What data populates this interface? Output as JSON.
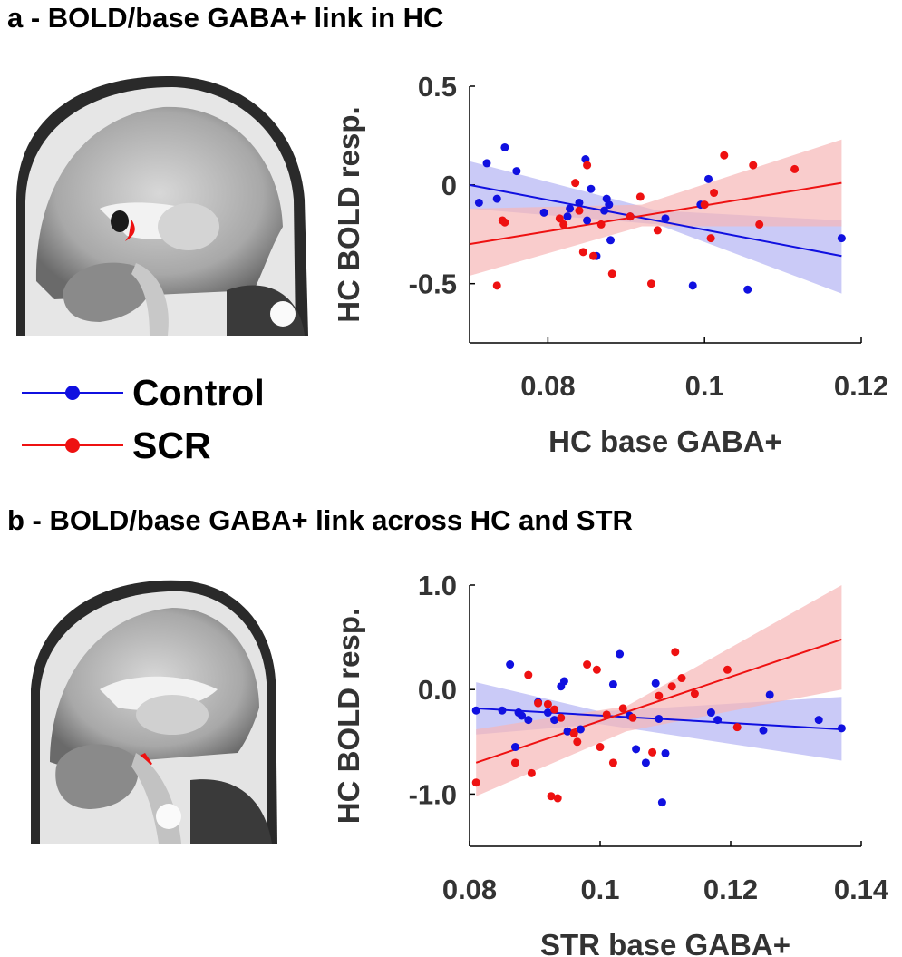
{
  "panel_a": {
    "title": "a - BOLD/base GABA+ link in HC"
  },
  "panel_b": {
    "title": "b - BOLD/base GABA+ link across HC and STR"
  },
  "legend": {
    "items": [
      {
        "label": "Control",
        "color": "#1010e0"
      },
      {
        "label": "SCR",
        "color": "#ee1111"
      }
    ]
  },
  "colors": {
    "control": "#1010e0",
    "scr": "#ee1111",
    "control_band": "#b4b4f4",
    "scr_band": "#f7b7b7"
  },
  "chart_data": [
    {
      "type": "scatter",
      "title": "",
      "xlabel": "HC base GABA+",
      "ylabel": "HC BOLD resp.",
      "xlim": [
        0.07,
        0.12
      ],
      "ylim": [
        -0.8,
        0.5
      ],
      "xticks": [
        0.08,
        0.1,
        0.12
      ],
      "xtick_labels": [
        "0.08",
        "0.1",
        "0.12"
      ],
      "yticks": [
        -0.5,
        0,
        0.5
      ],
      "ytick_labels": [
        "-0.5",
        "0",
        "0.5"
      ],
      "series": [
        {
          "name": "Control",
          "points": [
            [
              0.0712,
              -0.09
            ],
            [
              0.0722,
              0.11
            ],
            [
              0.0735,
              -0.07
            ],
            [
              0.0745,
              0.19
            ],
            [
              0.076,
              0.07
            ],
            [
              0.0795,
              -0.14
            ],
            [
              0.0825,
              -0.16
            ],
            [
              0.0828,
              -0.12
            ],
            [
              0.084,
              -0.09
            ],
            [
              0.0848,
              0.13
            ],
            [
              0.085,
              -0.18
            ],
            [
              0.0855,
              -0.02
            ],
            [
              0.0862,
              -0.36
            ],
            [
              0.0872,
              -0.13
            ],
            [
              0.0875,
              -0.07
            ],
            [
              0.0878,
              -0.1
            ],
            [
              0.088,
              -0.28
            ],
            [
              0.0905,
              -0.16
            ],
            [
              0.095,
              -0.17
            ],
            [
              0.0985,
              -0.51
            ],
            [
              0.0995,
              -0.1
            ],
            [
              0.1005,
              0.03
            ],
            [
              0.1055,
              -0.53
            ],
            [
              0.1175,
              -0.27
            ]
          ],
          "fit": {
            "x": [
              0.07,
              0.1175
            ],
            "y": [
              0.0,
              -0.36
            ]
          },
          "ci_upper": [
            [
              0.07,
              0.12
            ],
            [
              0.094,
              -0.13
            ],
            [
              0.1175,
              -0.18
            ]
          ],
          "ci_lower": [
            [
              0.07,
              -0.12
            ],
            [
              0.094,
              -0.2
            ],
            [
              0.1175,
              -0.55
            ]
          ]
        },
        {
          "name": "SCR",
          "points": [
            [
              0.0735,
              -0.51
            ],
            [
              0.0742,
              -0.18
            ],
            [
              0.0745,
              -0.19
            ],
            [
              0.0815,
              -0.17
            ],
            [
              0.082,
              -0.2
            ],
            [
              0.0835,
              0.01
            ],
            [
              0.084,
              -0.13
            ],
            [
              0.0845,
              -0.34
            ],
            [
              0.085,
              0.1
            ],
            [
              0.0858,
              -0.36
            ],
            [
              0.0868,
              -0.2
            ],
            [
              0.0882,
              -0.45
            ],
            [
              0.0905,
              -0.16
            ],
            [
              0.0918,
              -0.06
            ],
            [
              0.0932,
              -0.5
            ],
            [
              0.094,
              -0.23
            ],
            [
              0.1,
              -0.1
            ],
            [
              0.1008,
              -0.27
            ],
            [
              0.1012,
              -0.04
            ],
            [
              0.1025,
              0.15
            ],
            [
              0.1062,
              0.1
            ],
            [
              0.107,
              -0.2
            ],
            [
              0.1115,
              0.08
            ]
          ],
          "fit": {
            "x": [
              0.07,
              0.1175
            ],
            "y": [
              -0.3,
              0.01
            ]
          },
          "ci_upper": [
            [
              0.07,
              -0.12
            ],
            [
              0.092,
              -0.1
            ],
            [
              0.1175,
              0.23
            ]
          ],
          "ci_lower": [
            [
              0.07,
              -0.46
            ],
            [
              0.092,
              -0.21
            ],
            [
              0.1175,
              -0.21
            ]
          ]
        }
      ]
    },
    {
      "type": "scatter",
      "title": "",
      "xlabel": "STR base GABA+",
      "ylabel": "HC BOLD resp.",
      "xlim": [
        0.08,
        0.14
      ],
      "ylim": [
        -1.5,
        1.0
      ],
      "xticks": [
        0.08,
        0.1,
        0.12,
        0.14
      ],
      "xtick_labels": [
        "0.08",
        "0.1",
        "0.12",
        "0.14"
      ],
      "yticks": [
        -1.0,
        0,
        1.0
      ],
      "ytick_labels": [
        "-1.0",
        "0.0",
        "1.0"
      ],
      "series": [
        {
          "name": "Control",
          "points": [
            [
              0.081,
              -0.2
            ],
            [
              0.085,
              -0.2
            ],
            [
              0.0862,
              0.24
            ],
            [
              0.087,
              -0.55
            ],
            [
              0.0875,
              -0.22
            ],
            [
              0.088,
              -0.25
            ],
            [
              0.089,
              -0.29
            ],
            [
              0.0905,
              -0.12
            ],
            [
              0.092,
              -0.22
            ],
            [
              0.093,
              -0.29
            ],
            [
              0.094,
              0.03
            ],
            [
              0.0945,
              0.08
            ],
            [
              0.095,
              -0.4
            ],
            [
              0.097,
              -0.38
            ],
            [
              0.102,
              0.05
            ],
            [
              0.103,
              0.34
            ],
            [
              0.1045,
              -0.25
            ],
            [
              0.1055,
              -0.57
            ],
            [
              0.107,
              -0.7
            ],
            [
              0.1085,
              0.06
            ],
            [
              0.109,
              -0.28
            ],
            [
              0.1095,
              -1.08
            ],
            [
              0.11,
              -0.61
            ],
            [
              0.117,
              -0.22
            ],
            [
              0.118,
              -0.29
            ],
            [
              0.125,
              -0.39
            ],
            [
              0.126,
              -0.05
            ],
            [
              0.1335,
              -0.29
            ],
            [
              0.137,
              -0.37
            ]
          ],
          "fit": {
            "x": [
              0.081,
              0.137
            ],
            "y": [
              -0.18,
              -0.38
            ]
          },
          "ci_upper": [
            [
              0.081,
              0.07
            ],
            [
              0.1,
              -0.21
            ],
            [
              0.137,
              -0.07
            ]
          ],
          "ci_lower": [
            [
              0.081,
              -0.43
            ],
            [
              0.1,
              -0.33
            ],
            [
              0.137,
              -0.68
            ]
          ]
        },
        {
          "name": "SCR",
          "points": [
            [
              0.081,
              -0.89
            ],
            [
              0.087,
              -0.7
            ],
            [
              0.089,
              0.14
            ],
            [
              0.0895,
              -0.8
            ],
            [
              0.0905,
              -0.13
            ],
            [
              0.092,
              -0.14
            ],
            [
              0.0925,
              -1.02
            ],
            [
              0.093,
              -0.19
            ],
            [
              0.0935,
              -1.04
            ],
            [
              0.094,
              -0.27
            ],
            [
              0.096,
              -0.42
            ],
            [
              0.0965,
              -0.5
            ],
            [
              0.098,
              0.24
            ],
            [
              0.0995,
              0.19
            ],
            [
              0.1,
              -0.55
            ],
            [
              0.101,
              -0.24
            ],
            [
              0.102,
              -0.7
            ],
            [
              0.1035,
              -0.18
            ],
            [
              0.105,
              -0.27
            ],
            [
              0.108,
              -0.6
            ],
            [
              0.109,
              -0.06
            ],
            [
              0.111,
              0.03
            ],
            [
              0.1115,
              0.36
            ],
            [
              0.1125,
              0.11
            ],
            [
              0.1145,
              -0.04
            ],
            [
              0.1195,
              0.19
            ],
            [
              0.121,
              -0.36
            ]
          ],
          "fit": {
            "x": [
              0.081,
              0.137
            ],
            "y": [
              -0.7,
              0.48
            ]
          },
          "ci_upper": [
            [
              0.081,
              -0.38
            ],
            [
              0.104,
              -0.16
            ],
            [
              0.137,
              1.0
            ]
          ],
          "ci_lower": [
            [
              0.081,
              -1.02
            ],
            [
              0.104,
              -0.4
            ],
            [
              0.137,
              0.0
            ]
          ]
        }
      ]
    }
  ]
}
